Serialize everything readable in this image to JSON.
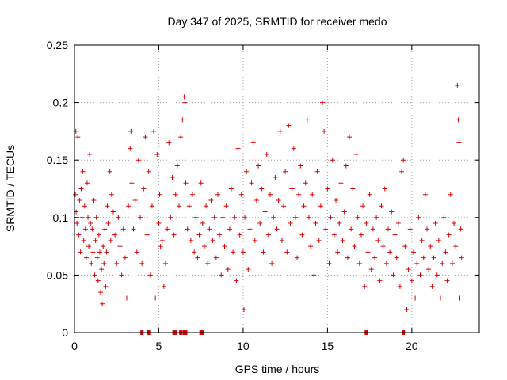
{
  "chart_data": {
    "type": "scatter",
    "title": "Day 347 of 2025, SRMTID for receiver medo",
    "xlabel": "GPS time / hours",
    "ylabel": "SRMTID / TECUs",
    "xlim": [
      0,
      24
    ],
    "ylim": [
      0,
      0.25
    ],
    "x_ticks": [
      0,
      5,
      10,
      15,
      20
    ],
    "x_tick_labels": [
      "0",
      "5",
      "10",
      "15",
      "20"
    ],
    "y_ticks": [
      0,
      0.05,
      0.1,
      0.15,
      0.2,
      0.25
    ],
    "y_tick_labels": [
      "0",
      "0.05",
      "0.1",
      "0.15",
      "0.2",
      "0.25"
    ],
    "grid": true,
    "marker": "+",
    "color": "#dd0000",
    "zero_markers_x": [
      4.0,
      4.4,
      5.9,
      6.0,
      6.3,
      6.5,
      6.6,
      7.5,
      7.6,
      17.3,
      19.5
    ],
    "series": [
      {
        "name": "SRMTID",
        "points": [
          [
            0.05,
            0.12
          ],
          [
            0.08,
            0.175
          ],
          [
            0.1,
            0.105
          ],
          [
            0.15,
            0.095
          ],
          [
            0.2,
            0.17
          ],
          [
            0.25,
            0.085
          ],
          [
            0.3,
            0.115
          ],
          [
            0.35,
            0.07
          ],
          [
            0.4,
            0.125
          ],
          [
            0.45,
            0.1
          ],
          [
            0.5,
            0.14
          ],
          [
            0.55,
            0.08
          ],
          [
            0.6,
            0.11
          ],
          [
            0.65,
            0.09
          ],
          [
            0.7,
            0.065
          ],
          [
            0.75,
            0.13
          ],
          [
            0.8,
            0.1
          ],
          [
            0.85,
            0.075
          ],
          [
            0.9,
            0.155
          ],
          [
            0.95,
            0.095
          ],
          [
            1.0,
            0.06
          ],
          [
            1.05,
            0.09
          ],
          [
            1.1,
            0.07
          ],
          [
            1.15,
            0.115
          ],
          [
            1.2,
            0.05
          ],
          [
            1.25,
            0.08
          ],
          [
            1.3,
            0.1
          ],
          [
            1.35,
            0.065
          ],
          [
            1.4,
            0.045
          ],
          [
            1.45,
            0.085
          ],
          [
            1.5,
            0.07
          ],
          [
            1.55,
            0.035
          ],
          [
            1.6,
            0.055
          ],
          [
            1.65,
            0.025
          ],
          [
            1.7,
            0.075
          ],
          [
            1.75,
            0.06
          ],
          [
            1.8,
            0.09
          ],
          [
            1.85,
            0.04
          ],
          [
            1.9,
            0.07
          ],
          [
            1.95,
            0.11
          ],
          [
            2.0,
            0.095
          ],
          [
            2.1,
            0.14
          ],
          [
            2.15,
            0.08
          ],
          [
            2.2,
            0.12
          ],
          [
            2.3,
            0.105
          ],
          [
            2.4,
            0.085
          ],
          [
            2.5,
            0.06
          ],
          [
            2.6,
            0.1
          ],
          [
            2.7,
            0.075
          ],
          [
            2.8,
            0.05
          ],
          [
            2.9,
            0.09
          ],
          [
            3.0,
            0.065
          ],
          [
            3.1,
            0.03
          ],
          [
            3.2,
            0.11
          ],
          [
            3.3,
            0.16
          ],
          [
            3.35,
            0.175
          ],
          [
            3.4,
            0.13
          ],
          [
            3.5,
            0.09
          ],
          [
            3.6,
            0.115
          ],
          [
            3.7,
            0.07
          ],
          [
            3.8,
            0.15
          ],
          [
            3.9,
            0.1
          ],
          [
            4.0,
            0.06
          ],
          [
            4.1,
            0.125
          ],
          [
            4.2,
            0.17
          ],
          [
            4.3,
            0.085
          ],
          [
            4.4,
            0.14
          ],
          [
            4.5,
            0.05
          ],
          [
            4.6,
            0.11
          ],
          [
            4.7,
            0.175
          ],
          [
            4.8,
            0.03
          ],
          [
            4.9,
            0.155
          ],
          [
            5.0,
            0.095
          ],
          [
            5.05,
            0.12
          ],
          [
            5.1,
            0.075
          ],
          [
            5.2,
            0.08
          ],
          [
            5.3,
            0.04
          ],
          [
            5.4,
            0.06
          ],
          [
            5.5,
            0.09
          ],
          [
            5.6,
            0.165
          ],
          [
            5.7,
            0.1
          ],
          [
            5.8,
            0.135
          ],
          [
            5.9,
            0.085
          ],
          [
            6.0,
            0.12
          ],
          [
            6.1,
            0.145
          ],
          [
            6.2,
            0.11
          ],
          [
            6.3,
            0.17
          ],
          [
            6.4,
            0.185
          ],
          [
            6.5,
            0.205
          ],
          [
            6.55,
            0.2
          ],
          [
            6.6,
            0.13
          ],
          [
            6.7,
            0.09
          ],
          [
            6.8,
            0.11
          ],
          [
            6.9,
            0.08
          ],
          [
            7.0,
            0.12
          ],
          [
            7.1,
            0.07
          ],
          [
            7.2,
            0.1
          ],
          [
            7.3,
            0.065
          ],
          [
            7.4,
            0.085
          ],
          [
            7.5,
            0.13
          ],
          [
            7.6,
            0.095
          ],
          [
            7.7,
            0.075
          ],
          [
            7.8,
            0.11
          ],
          [
            7.9,
            0.06
          ],
          [
            8.0,
            0.09
          ],
          [
            8.1,
            0.115
          ],
          [
            8.2,
            0.08
          ],
          [
            8.3,
            0.1
          ],
          [
            8.4,
            0.065
          ],
          [
            8.5,
            0.12
          ],
          [
            8.6,
            0.085
          ],
          [
            8.7,
            0.05
          ],
          [
            8.8,
            0.1
          ],
          [
            8.9,
            0.075
          ],
          [
            9.0,
            0.11
          ],
          [
            9.1,
            0.055
          ],
          [
            9.2,
            0.09
          ],
          [
            9.3,
            0.125
          ],
          [
            9.4,
            0.07
          ],
          [
            9.5,
            0.1
          ],
          [
            9.6,
            0.045
          ],
          [
            9.7,
            0.16
          ],
          [
            9.8,
            0.085
          ],
          [
            9.9,
            0.12
          ],
          [
            10.0,
            0.07
          ],
          [
            10.05,
            0.02
          ],
          [
            10.1,
            0.1
          ],
          [
            10.2,
            0.14
          ],
          [
            10.3,
            0.055
          ],
          [
            10.4,
            0.09
          ],
          [
            10.5,
            0.13
          ],
          [
            10.6,
            0.165
          ],
          [
            10.7,
            0.08
          ],
          [
            10.8,
            0.115
          ],
          [
            10.9,
            0.145
          ],
          [
            11.0,
            0.095
          ],
          [
            11.1,
            0.125
          ],
          [
            11.2,
            0.07
          ],
          [
            11.3,
            0.105
          ],
          [
            11.4,
            0.155
          ],
          [
            11.5,
            0.085
          ],
          [
            11.6,
            0.12
          ],
          [
            11.7,
            0.06
          ],
          [
            11.8,
            0.1
          ],
          [
            11.9,
            0.135
          ],
          [
            12.0,
            0.09
          ],
          [
            12.1,
            0.115
          ],
          [
            12.2,
            0.175
          ],
          [
            12.3,
            0.08
          ],
          [
            12.4,
            0.11
          ],
          [
            12.5,
            0.14
          ],
          [
            12.6,
            0.07
          ],
          [
            12.7,
            0.18
          ],
          [
            12.8,
            0.095
          ],
          [
            12.9,
            0.125
          ],
          [
            13.0,
            0.16
          ],
          [
            13.1,
            0.1
          ],
          [
            13.2,
            0.065
          ],
          [
            13.3,
            0.12
          ],
          [
            13.4,
            0.145
          ],
          [
            13.5,
            0.085
          ],
          [
            13.6,
            0.11
          ],
          [
            13.7,
            0.13
          ],
          [
            13.8,
            0.185
          ],
          [
            13.9,
            0.1
          ],
          [
            14.0,
            0.075
          ],
          [
            14.1,
            0.12
          ],
          [
            14.2,
            0.05
          ],
          [
            14.3,
            0.095
          ],
          [
            14.4,
            0.14
          ],
          [
            14.5,
            0.08
          ],
          [
            14.6,
            0.11
          ],
          [
            14.7,
            0.2
          ],
          [
            14.8,
            0.175
          ],
          [
            14.9,
            0.09
          ],
          [
            15.0,
            0.125
          ],
          [
            15.1,
            0.06
          ],
          [
            15.2,
            0.1
          ],
          [
            15.3,
            0.15
          ],
          [
            15.4,
            0.085
          ],
          [
            15.5,
            0.115
          ],
          [
            15.6,
            0.07
          ],
          [
            15.7,
            0.095
          ],
          [
            15.8,
            0.13
          ],
          [
            15.9,
            0.08
          ],
          [
            16.0,
            0.105
          ],
          [
            16.1,
            0.145
          ],
          [
            16.2,
            0.065
          ],
          [
            16.3,
            0.17
          ],
          [
            16.4,
            0.09
          ],
          [
            16.5,
            0.125
          ],
          [
            16.6,
            0.075
          ],
          [
            16.7,
            0.155
          ],
          [
            16.8,
            0.1
          ],
          [
            16.9,
            0.06
          ],
          [
            17.0,
            0.085
          ],
          [
            17.1,
            0.11
          ],
          [
            17.2,
            0.04
          ],
          [
            17.3,
            0.095
          ],
          [
            17.4,
            0.07
          ],
          [
            17.5,
            0.12
          ],
          [
            17.6,
            0.055
          ],
          [
            17.7,
            0.09
          ],
          [
            17.8,
            0.065
          ],
          [
            17.9,
            0.1
          ],
          [
            18.0,
            0.08
          ],
          [
            18.1,
            0.045
          ],
          [
            18.2,
            0.11
          ],
          [
            18.3,
            0.075
          ],
          [
            18.4,
            0.125
          ],
          [
            18.5,
            0.06
          ],
          [
            18.6,
            0.09
          ],
          [
            18.7,
            0.07
          ],
          [
            18.8,
            0.105
          ],
          [
            18.9,
            0.05
          ],
          [
            19.0,
            0.085
          ],
          [
            19.1,
            0.065
          ],
          [
            19.2,
            0.095
          ],
          [
            19.3,
            0.04
          ],
          [
            19.4,
            0.14
          ],
          [
            19.5,
            0.15
          ],
          [
            19.6,
            0.075
          ],
          [
            19.7,
            0.02
          ],
          [
            19.8,
            0.055
          ],
          [
            19.9,
            0.09
          ],
          [
            20.0,
            0.045
          ],
          [
            20.1,
            0.07
          ],
          [
            20.2,
            0.03
          ],
          [
            20.3,
            0.06
          ],
          [
            20.4,
            0.1
          ],
          [
            20.5,
            0.05
          ],
          [
            20.6,
            0.08
          ],
          [
            20.7,
            0.065
          ],
          [
            20.8,
            0.12
          ],
          [
            20.9,
            0.09
          ],
          [
            21.0,
            0.055
          ],
          [
            21.1,
            0.075
          ],
          [
            21.2,
            0.04
          ],
          [
            21.3,
            0.065
          ],
          [
            21.4,
            0.095
          ],
          [
            21.5,
            0.05
          ],
          [
            21.6,
            0.08
          ],
          [
            21.7,
            0.03
          ],
          [
            21.8,
            0.06
          ],
          [
            21.9,
            0.1
          ],
          [
            22.0,
            0.07
          ],
          [
            22.1,
            0.045
          ],
          [
            22.2,
            0.085
          ],
          [
            22.3,
            0.12
          ],
          [
            22.4,
            0.06
          ],
          [
            22.5,
            0.095
          ],
          [
            22.6,
            0.075
          ],
          [
            22.7,
            0.215
          ],
          [
            22.75,
            0.185
          ],
          [
            22.8,
            0.165
          ],
          [
            22.85,
            0.03
          ],
          [
            22.9,
            0.09
          ],
          [
            22.95,
            0.065
          ]
        ]
      }
    ]
  }
}
